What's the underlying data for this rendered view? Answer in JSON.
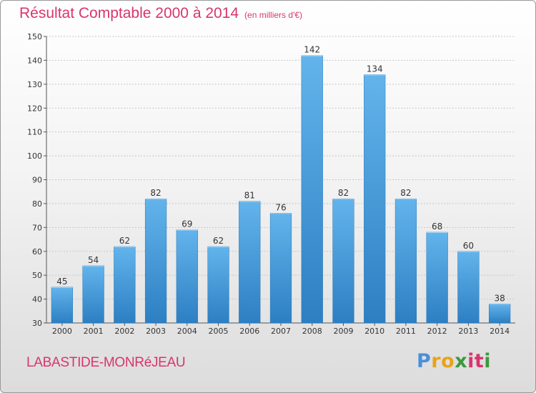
{
  "header": {
    "title": "Résultat Comptable 2000 à 2014",
    "unit": "(en milliers d'€)"
  },
  "footer": {
    "commune": "LABASTIDE-MONRéJEAU",
    "logo_letters": [
      "P",
      "r",
      "o",
      "x",
      "i",
      "t",
      "i"
    ]
  },
  "colors": {
    "title": "#d8356e",
    "bar_top": "#63b4ec",
    "bar_bottom": "#2c7fc2",
    "grid": "#c8c8c8",
    "axis_text": "#333333",
    "logo": [
      "#4a90d9",
      "#e8a31a",
      "#e8a31a",
      "#3b9a3b",
      "#d8356e",
      "#d8356e",
      "#3b9a3b"
    ]
  },
  "chart_data": {
    "type": "bar",
    "title": "Résultat Comptable 2000 à 2014",
    "xlabel": "",
    "ylabel": "",
    "categories": [
      "2000",
      "2001",
      "2002",
      "2003",
      "2004",
      "2005",
      "2006",
      "2007",
      "2008",
      "2009",
      "2010",
      "2011",
      "2012",
      "2013",
      "2014"
    ],
    "values": [
      45,
      54,
      62,
      82,
      69,
      62,
      81,
      76,
      142,
      82,
      134,
      82,
      68,
      60,
      38
    ],
    "ylim": [
      30,
      150
    ],
    "yticks": [
      30,
      40,
      50,
      60,
      70,
      80,
      90,
      100,
      110,
      120,
      130,
      140,
      150
    ],
    "grid": true
  }
}
